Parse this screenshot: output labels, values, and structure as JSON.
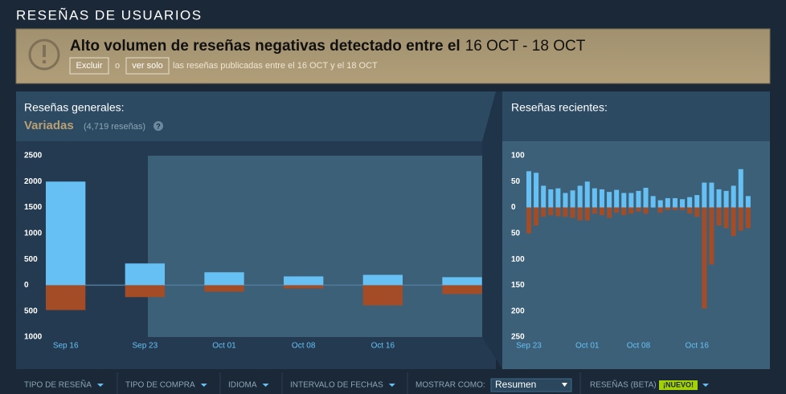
{
  "header": {
    "title": "RESEÑAS DE USUARIOS"
  },
  "banner": {
    "title": "Alto volumen de reseñas negativas detectado entre el",
    "dates": "16 OCT - 18 OCT",
    "exclude": "Excluir",
    "or": "o",
    "only": "ver solo",
    "text": "las reseñas publicadas entre el 16 OCT y el 18 OCT"
  },
  "overall": {
    "label": "Reseñas generales:",
    "rating": "Variadas",
    "count": "(4,719 reseñas)",
    "help": "?"
  },
  "recent": {
    "label": "Reseñas recientes:"
  },
  "filters": {
    "items": [
      "TIPO DE RESEÑA",
      "TIPO DE COMPRA",
      "IDIOMA",
      "INTERVALO DE FECHAS",
      "MOSTRAR COMO:"
    ],
    "select": "Resumen",
    "beta": "RESEÑAS (BETA)",
    "badge": "¡NUEVO!"
  },
  "chart_data": [
    {
      "type": "bar",
      "categories": [
        "Sep 16",
        "Sep 23",
        "Oct 01",
        "Oct 08",
        "Oct 16",
        null
      ],
      "series": [
        {
          "color": "#66c0f4",
          "values": [
            2000,
            420,
            250,
            170,
            200,
            155
          ]
        },
        {
          "color": "#a34c25",
          "values": [
            -480,
            -230,
            -125,
            -60,
            -390,
            -170
          ]
        }
      ],
      "ylim": [
        -1000,
        2500
      ],
      "yticks": [
        2500,
        2000,
        1500,
        1000,
        500,
        0,
        {
          "value": -500,
          "label": "500"
        },
        {
          "value": -1000,
          "label": "1000"
        }
      ]
    },
    {
      "type": "bar",
      "categories": [
        "Sep 23",
        null,
        null,
        null,
        null,
        null,
        null,
        null,
        "Oct 01",
        null,
        null,
        null,
        null,
        null,
        null,
        "Oct 08",
        null,
        null,
        null,
        null,
        null,
        null,
        null,
        "Oct 16",
        null,
        null,
        null,
        null,
        null,
        null,
        null
      ],
      "series": [
        {
          "color": "#66c0f4",
          "values": [
            70,
            67,
            42,
            35,
            37,
            28,
            33,
            42,
            50,
            37,
            35,
            30,
            34,
            28,
            28,
            32,
            38,
            22,
            14,
            18,
            18,
            16,
            20,
            24,
            48,
            48,
            35,
            32,
            42,
            74,
            22
          ]
        },
        {
          "color": "#a34c25",
          "values": [
            -50,
            -35,
            -18,
            -15,
            -17,
            -18,
            -20,
            -25,
            -25,
            -12,
            -15,
            -20,
            -10,
            -15,
            -12,
            -8,
            -12,
            0,
            -10,
            -5,
            -5,
            -5,
            -12,
            -18,
            -195,
            -110,
            -35,
            -40,
            -55,
            -45,
            -40
          ]
        }
      ],
      "ylim": [
        -250,
        100
      ],
      "yticks": [
        100,
        50,
        0,
        {
          "value": -50,
          "label": "50"
        },
        {
          "value": -100,
          "label": "100"
        },
        {
          "value": -150,
          "label": "150"
        },
        {
          "value": -200,
          "label": "200"
        },
        {
          "value": -250,
          "label": "250"
        }
      ]
    }
  ]
}
